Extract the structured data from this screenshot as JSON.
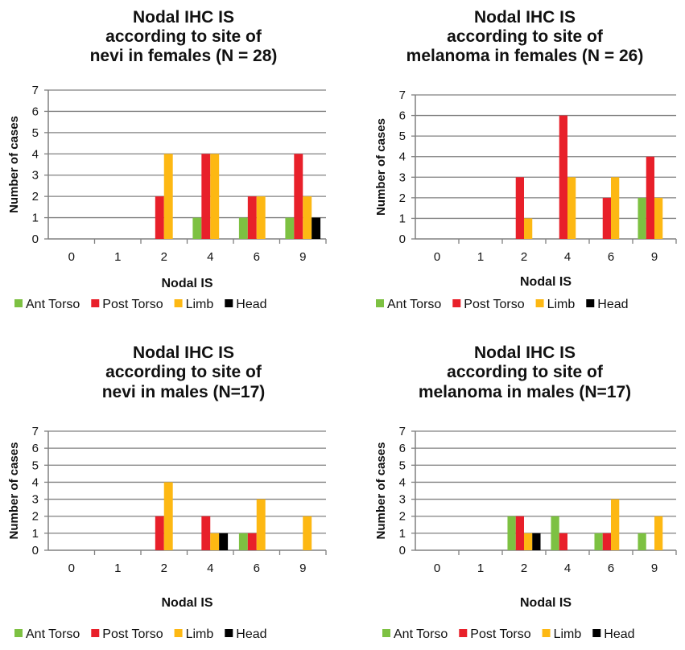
{
  "chart_data": [
    {
      "type": "bar",
      "title_lines": [
        "Nodal IHC IS",
        "according to site of",
        "nevi in females (N = 28)"
      ],
      "xlabel": "Nodal IS",
      "ylabel": "Number of cases",
      "ylim": [
        0,
        7
      ],
      "yticks": [
        "0",
        "1",
        "2",
        "3",
        "4",
        "5",
        "6",
        "7"
      ],
      "categories": [
        "0",
        "1",
        "2",
        "4",
        "6",
        "9"
      ],
      "grid": true,
      "legend_position": "bottom",
      "series": [
        {
          "name": "Ant Torso",
          "color": "#7dc142",
          "values": [
            0,
            0,
            0,
            1,
            1,
            1
          ]
        },
        {
          "name": "Post Torso",
          "color": "#e8202a",
          "values": [
            0,
            0,
            2,
            4,
            2,
            4
          ]
        },
        {
          "name": "Limb",
          "color": "#fdb813",
          "values": [
            0,
            0,
            4,
            4,
            2,
            2
          ]
        },
        {
          "name": "Head",
          "color": "#000000",
          "values": [
            0,
            0,
            0,
            0,
            0,
            1
          ]
        }
      ]
    },
    {
      "type": "bar",
      "title_lines": [
        "Nodal IHC IS",
        "according to site of",
        "melanoma in females (N = 26)"
      ],
      "xlabel": "Nodal IS",
      "ylabel": "Number of cases",
      "ylim": [
        0,
        7
      ],
      "yticks": [
        "0",
        "1",
        "2",
        "3",
        "4",
        "5",
        "6",
        "7"
      ],
      "categories": [
        "0",
        "1",
        "2",
        "4",
        "6",
        "9"
      ],
      "grid": true,
      "legend_position": "bottom",
      "series": [
        {
          "name": "Ant Torso",
          "color": "#7dc142",
          "values": [
            0,
            0,
            0,
            0,
            0,
            2
          ]
        },
        {
          "name": "Post Torso",
          "color": "#e8202a",
          "values": [
            0,
            0,
            3,
            6,
            2,
            4
          ]
        },
        {
          "name": "Limb",
          "color": "#fdb813",
          "values": [
            0,
            0,
            1,
            3,
            3,
            2
          ]
        },
        {
          "name": "Head",
          "color": "#000000",
          "values": [
            0,
            0,
            0,
            0,
            0,
            0
          ]
        }
      ]
    },
    {
      "type": "bar",
      "title_lines": [
        "Nodal IHC IS",
        "according to site of",
        "nevi in males (N=17)"
      ],
      "xlabel": "Nodal IS",
      "ylabel": "Number of cases",
      "ylim": [
        0,
        7
      ],
      "yticks": [
        "0",
        "1",
        "2",
        "3",
        "4",
        "5",
        "6",
        "7"
      ],
      "categories": [
        "0",
        "1",
        "2",
        "4",
        "6",
        "9"
      ],
      "grid": true,
      "legend_position": "bottom",
      "series": [
        {
          "name": "Ant Torso",
          "color": "#7dc142",
          "values": [
            0,
            0,
            0,
            0,
            1,
            0
          ]
        },
        {
          "name": "Post Torso",
          "color": "#e8202a",
          "values": [
            0,
            0,
            2,
            2,
            1,
            0
          ]
        },
        {
          "name": "Limb",
          "color": "#fdb813",
          "values": [
            0,
            0,
            4,
            1,
            3,
            2
          ]
        },
        {
          "name": "Head",
          "color": "#000000",
          "values": [
            0,
            0,
            0,
            1,
            0,
            0
          ]
        }
      ]
    },
    {
      "type": "bar",
      "title_lines": [
        "Nodal IHC IS",
        "according to site of",
        "melanoma in males (N=17)"
      ],
      "xlabel": "Nodal IS",
      "ylabel": "Number of cases",
      "ylim": [
        0,
        7
      ],
      "yticks": [
        "0",
        "1",
        "2",
        "3",
        "4",
        "5",
        "6",
        "7"
      ],
      "categories": [
        "0",
        "1",
        "2",
        "4",
        "6",
        "9"
      ],
      "grid": true,
      "legend_position": "bottom",
      "series": [
        {
          "name": "Ant Torso",
          "color": "#7dc142",
          "values": [
            0,
            0,
            2,
            2,
            1,
            1
          ]
        },
        {
          "name": "Post Torso",
          "color": "#e8202a",
          "values": [
            0,
            0,
            2,
            1,
            1,
            0
          ]
        },
        {
          "name": "Limb",
          "color": "#fdb813",
          "values": [
            0,
            0,
            1,
            0,
            3,
            2
          ]
        },
        {
          "name": "Head",
          "color": "#000000",
          "values": [
            0,
            0,
            1,
            0,
            0,
            0
          ]
        }
      ]
    }
  ]
}
